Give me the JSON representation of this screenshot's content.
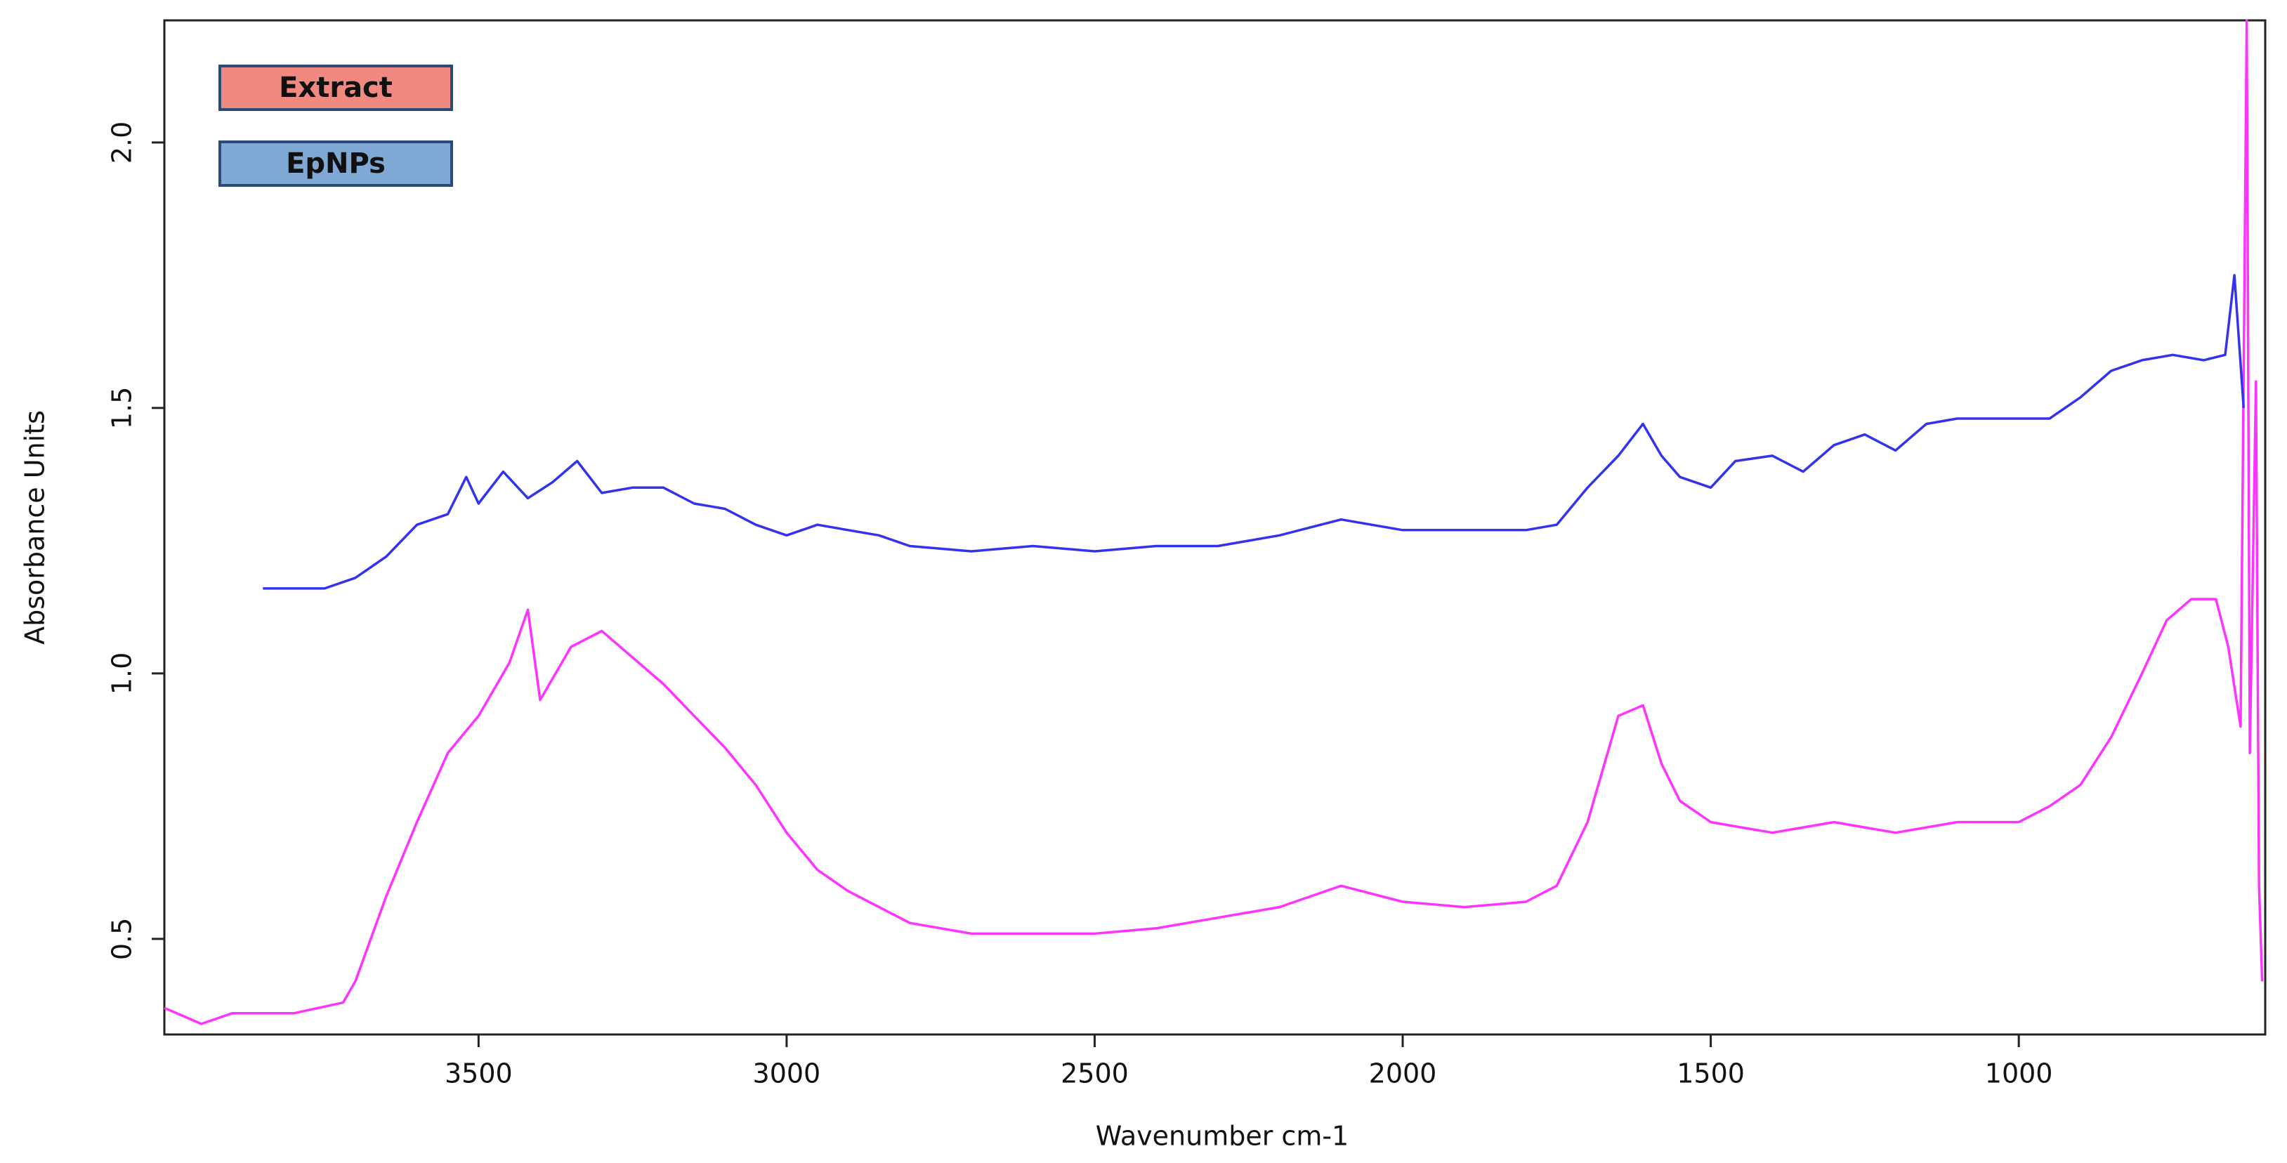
{
  "chart_data": {
    "type": "line",
    "xlabel": "Wavenumber cm-1",
    "ylabel": "Absorbance Units",
    "xlim": [
      4010,
      600
    ],
    "xticks": [
      3500,
      3000,
      2500,
      2000,
      1500,
      1000
    ],
    "ylim": [
      0.32,
      2.23
    ],
    "yticks": [
      0.5,
      {
        "value": 1.0,
        "label": "1.0"
      },
      1.5,
      {
        "value": 2.0,
        "label": "2.0"
      }
    ],
    "legend": "upper left",
    "series": [
      {
        "name": "Extract",
        "color": "#ff33ff",
        "legend_color": "#f08a80",
        "x": [
          4010,
          3950,
          3900,
          3800,
          3720,
          3700,
          3650,
          3600,
          3550,
          3500,
          3450,
          3420,
          3400,
          3350,
          3300,
          3250,
          3200,
          3150,
          3100,
          3050,
          3000,
          2950,
          2900,
          2850,
          2800,
          2700,
          2600,
          2500,
          2400,
          2300,
          2200,
          2100,
          2000,
          1900,
          1800,
          1750,
          1700,
          1650,
          1610,
          1580,
          1550,
          1500,
          1400,
          1300,
          1200,
          1100,
          1000,
          950,
          900,
          850,
          800,
          760,
          720,
          680,
          660,
          640,
          630,
          625,
          615,
          610,
          605
        ],
        "values": [
          0.37,
          0.34,
          0.36,
          0.36,
          0.38,
          0.42,
          0.58,
          0.72,
          0.85,
          0.92,
          1.02,
          1.12,
          0.95,
          1.05,
          1.08,
          1.03,
          0.98,
          0.92,
          0.86,
          0.79,
          0.7,
          0.63,
          0.59,
          0.56,
          0.53,
          0.51,
          0.51,
          0.51,
          0.52,
          0.54,
          0.56,
          0.6,
          0.57,
          0.56,
          0.57,
          0.6,
          0.72,
          0.92,
          0.94,
          0.83,
          0.76,
          0.72,
          0.7,
          0.72,
          0.7,
          0.72,
          0.72,
          0.75,
          0.79,
          0.88,
          1.0,
          1.1,
          1.14,
          1.14,
          1.05,
          0.9,
          2.23,
          0.85,
          1.55,
          0.6,
          0.42
        ]
      },
      {
        "name": "EpNPs",
        "color": "#3333ee",
        "legend_color": "#7fa8d4",
        "x": [
          3850,
          3800,
          3750,
          3700,
          3650,
          3600,
          3550,
          3520,
          3500,
          3460,
          3420,
          3380,
          3340,
          3300,
          3250,
          3200,
          3150,
          3100,
          3050,
          3000,
          2950,
          2900,
          2850,
          2800,
          2700,
          2600,
          2500,
          2400,
          2300,
          2200,
          2100,
          2000,
          1900,
          1800,
          1750,
          1700,
          1650,
          1610,
          1580,
          1550,
          1500,
          1460,
          1400,
          1350,
          1300,
          1250,
          1200,
          1150,
          1100,
          1050,
          1000,
          950,
          900,
          850,
          800,
          750,
          700,
          665,
          650,
          635
        ],
        "values": [
          1.16,
          1.16,
          1.16,
          1.18,
          1.22,
          1.28,
          1.3,
          1.37,
          1.32,
          1.38,
          1.33,
          1.36,
          1.4,
          1.34,
          1.35,
          1.35,
          1.32,
          1.31,
          1.28,
          1.26,
          1.28,
          1.27,
          1.26,
          1.24,
          1.23,
          1.24,
          1.23,
          1.24,
          1.24,
          1.26,
          1.29,
          1.27,
          1.27,
          1.27,
          1.28,
          1.35,
          1.41,
          1.47,
          1.41,
          1.37,
          1.35,
          1.4,
          1.41,
          1.38,
          1.43,
          1.45,
          1.42,
          1.47,
          1.48,
          1.48,
          1.48,
          1.48,
          1.52,
          1.57,
          1.59,
          1.6,
          1.59,
          1.6,
          1.75,
          1.5
        ]
      }
    ]
  }
}
